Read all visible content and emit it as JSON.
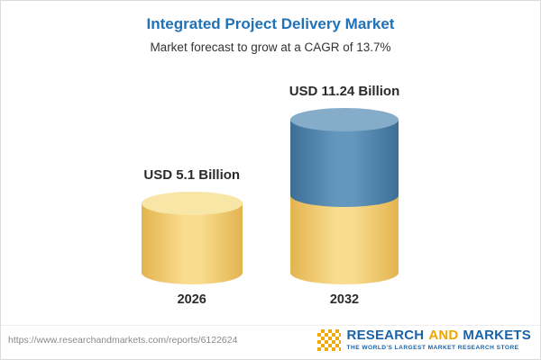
{
  "header": {
    "title": "Integrated Project Delivery Market",
    "subtitle": "Market forecast to grow at a CAGR of 13.7%"
  },
  "chart_data": {
    "type": "bar",
    "variant": "3d-cylinder",
    "categories": [
      "2026",
      "2032"
    ],
    "values": [
      5.1,
      11.24
    ],
    "value_labels": [
      "USD 5.1 Billion",
      "USD 11.24 Billion"
    ],
    "unit": "USD Billion",
    "title": "Integrated Project Delivery Market",
    "subtitle": "Market forecast to grow at a CAGR of 13.7%",
    "cagr_percent": 13.7,
    "xlabel": "",
    "ylabel": "",
    "ylim": [
      0,
      12
    ],
    "grid": false,
    "legend": false,
    "colors": {
      "bar_2026": "#f3cf6f",
      "bar_2032_bottom_segment": "#f3cf6f",
      "bar_2032_top_segment": "#4c86ad",
      "title_text": "#1f72b8"
    }
  },
  "footer": {
    "url": "https://www.researchandmarkets.com/reports/6122624",
    "logo": {
      "word1": "RESEARCH",
      "word2": "AND",
      "word3": "MARKETS",
      "tagline": "THE WORLD'S LARGEST MARKET RESEARCH STORE"
    }
  }
}
